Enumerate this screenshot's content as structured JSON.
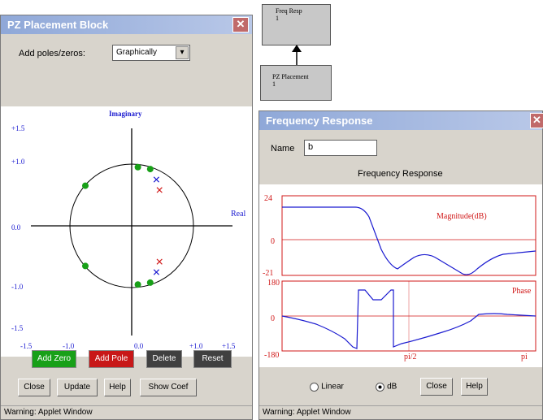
{
  "diagram": {
    "node_top": {
      "line1": "Freq Resp",
      "line2": "1"
    },
    "node_bottom": {
      "line1": "PZ Placement",
      "line2": "1"
    }
  },
  "pz_window": {
    "title": "PZ Placement Block",
    "close_glyph": "✕",
    "add_label": "Add poles/zeros:",
    "mode_value": "Graphically",
    "dropdown_glyph": "▾",
    "plot": {
      "imag_label": "Imaginary",
      "real_label": "Real",
      "y_ticks": [
        "+1.5",
        "+1.0",
        "0.0",
        "-1.0",
        "-1.5"
      ],
      "x_ticks": [
        "-1.5",
        "-1.0",
        "0.0",
        "+1.0",
        "+1.5"
      ],
      "zeros": [
        [
          0.1,
          0.95
        ],
        [
          0.3,
          0.92
        ],
        [
          -0.75,
          0.65
        ],
        [
          -0.75,
          -0.65
        ],
        [
          0.1,
          -0.95
        ],
        [
          0.3,
          -0.92
        ]
      ],
      "poles_blue": [
        [
          0.4,
          0.75
        ],
        [
          0.4,
          -0.75
        ]
      ],
      "poles_red": [
        [
          0.45,
          0.58
        ],
        [
          0.45,
          -0.58
        ]
      ]
    },
    "buttons": {
      "add_zero": "Add Zero",
      "add_pole": "Add Pole",
      "delete": "Delete",
      "reset": "Reset",
      "close": "Close",
      "update": "Update",
      "help": "Help",
      "show_coef": "Show Coef"
    },
    "colors": {
      "add_zero": "#18a018",
      "add_pole": "#c81818",
      "delete": "#404040",
      "reset": "#404040"
    },
    "status": "Warning: Applet Window"
  },
  "fr_window": {
    "title": "Frequency Response",
    "close_glyph": "✕",
    "name_label": "Name",
    "name_value": "b",
    "heading": "Frequency Response",
    "mag": {
      "label": "Magnitude(dB)",
      "y_top": "24",
      "y_mid": "0",
      "y_bottom": "-21"
    },
    "phase": {
      "label": "Phase",
      "y_top": "180",
      "y_mid": "0",
      "y_bottom": "-180",
      "x_mid": "pi/2",
      "x_end": "pi"
    },
    "radio_linear": "Linear",
    "radio_db": "dB",
    "close": "Close",
    "help": "Help",
    "status": "Warning: Applet Window"
  }
}
